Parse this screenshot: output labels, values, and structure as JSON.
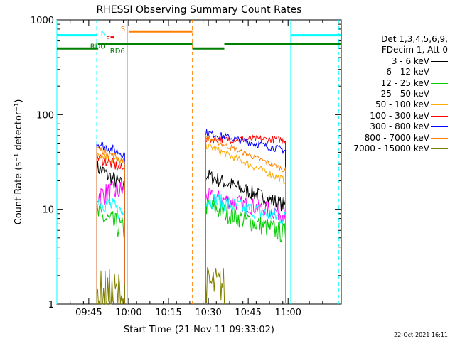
{
  "chart_data": {
    "type": "line",
    "title": "RHESSI Observing Summary Count Rates",
    "xlabel": "Start Time (21-Nov-11 09:33:02)",
    "ylabel": "Count Rate (s⁻¹ detector⁻¹)",
    "yscale": "log",
    "ylim": [
      1,
      1000
    ],
    "xlim_minutes": [
      0,
      107
    ],
    "x_ticks": [
      {
        "label": "09:45",
        "t": 12
      },
      {
        "label": "10:00",
        "t": 27
      },
      {
        "label": "10:15",
        "t": 42
      },
      {
        "label": "10:30",
        "t": 57
      },
      {
        "label": "10:45",
        "t": 72
      },
      {
        "label": "11:00",
        "t": 87
      }
    ],
    "y_ticks": [
      {
        "label": "1",
        "v": 1
      },
      {
        "label": "10",
        "v": 10
      },
      {
        "label": "100",
        "v": 100
      },
      {
        "label": "1000",
        "v": 1000
      }
    ],
    "legend_header": [
      "Det 1,3,4,5,6,9,",
      "FDecim 1, Att 0"
    ],
    "series": [
      {
        "name": "3 - 6 keV",
        "color": "#000000",
        "segments": [
          {
            "t0": 15,
            "t1": 25.5,
            "start": 28,
            "end": 17,
            "noise": 0.09
          },
          {
            "t0": 56,
            "t1": 86,
            "start": 23,
            "end": 11,
            "noise": 0.08
          }
        ]
      },
      {
        "name": "6 - 12 keV",
        "color": "#ff00ff",
        "segments": [
          {
            "t0": 15,
            "t1": 25.5,
            "start": 14,
            "end": 16,
            "noise": 0.12
          },
          {
            "t0": 56,
            "t1": 86,
            "start": 14,
            "end": 9,
            "noise": 0.09
          }
        ]
      },
      {
        "name": "12 - 25 keV",
        "color": "#00cc00",
        "segments": [
          {
            "t0": 15,
            "t1": 25.5,
            "start": 9,
            "end": 6,
            "noise": 0.13
          },
          {
            "t0": 56,
            "t1": 86,
            "start": 11,
            "end": 5.5,
            "noise": 0.11
          }
        ]
      },
      {
        "name": "25 - 50 keV",
        "color": "#00ffff",
        "segments": [
          {
            "t0": 15,
            "t1": 25.5,
            "start": 13,
            "end": 9,
            "noise": 0.1
          },
          {
            "t0": 56,
            "t1": 86,
            "start": 13,
            "end": 8,
            "noise": 0.09
          }
        ]
      },
      {
        "name": "50 - 100 keV",
        "color": "#ffaa00",
        "segments": [
          {
            "t0": 15,
            "t1": 25.5,
            "start": 40,
            "end": 30,
            "noise": 0.05
          },
          {
            "t0": 56,
            "t1": 86,
            "start": 48,
            "end": 20,
            "noise": 0.04
          }
        ]
      },
      {
        "name": "100 - 300 keV",
        "color": "#ff0000",
        "segments": [
          {
            "t0": 15,
            "t1": 25.5,
            "start": 36,
            "end": 26,
            "noise": 0.06
          },
          {
            "t0": 56,
            "t1": 86,
            "start": 55,
            "end": 55,
            "noise": 0.04
          }
        ]
      },
      {
        "name": "300 - 800 keV",
        "color": "#0000ff",
        "segments": [
          {
            "t0": 15,
            "t1": 25.5,
            "start": 50,
            "end": 38,
            "noise": 0.05
          },
          {
            "t0": 56,
            "t1": 86,
            "start": 65,
            "end": 42,
            "noise": 0.04
          }
        ]
      },
      {
        "name": "800 - 7000 keV",
        "color": "#ff8000",
        "segments": [
          {
            "t0": 15,
            "t1": 25.5,
            "start": 45,
            "end": 32,
            "noise": 0.04
          },
          {
            "t0": 56,
            "t1": 86,
            "start": 58,
            "end": 26,
            "noise": 0.03
          }
        ]
      },
      {
        "name": "7000 - 15000 keV",
        "color": "#808000",
        "segments": [
          {
            "t0": 15,
            "t1": 25.5,
            "start": 1.2,
            "end": 1.2,
            "noise": 0.3
          },
          {
            "t0": 56,
            "t1": 63,
            "start": 1.6,
            "end": 1.6,
            "noise": 0.2
          }
        ]
      }
    ],
    "flags": [
      {
        "label": "N",
        "color": "#00ffff",
        "label_t": 16.5,
        "label_y": 1.0
      },
      {
        "label": "F",
        "color": "#ff0000",
        "label_t": 18.5,
        "label_y": 2.3
      },
      {
        "label": "S",
        "color": "#ff8000",
        "label_t": 24,
        "label_y": 0.0
      },
      {
        "label": "RD0",
        "color": "#008000",
        "label_t": 12.5,
        "label_y": 4.1
      },
      {
        "label": "RD6",
        "color": "#008000",
        "label_t": 20,
        "label_y": 5.2
      }
    ],
    "flag_bars": [
      {
        "color": "#00ffff",
        "row": 1.6,
        "t0": 0,
        "t1": 15
      },
      {
        "color": "#00ffff",
        "row": 1.6,
        "t0": 88,
        "t1": 107
      },
      {
        "color": "#ff8000",
        "row": 0.7,
        "t0": 27,
        "t1": 51
      },
      {
        "color": "#ff0000",
        "row": 2.1,
        "t0": 20.2,
        "t1": 21.4
      },
      {
        "color": "#008000",
        "row": 3.6,
        "t0": 15.5,
        "t1": 51
      },
      {
        "color": "#008000",
        "row": 3.6,
        "t0": 63,
        "t1": 107
      },
      {
        "color": "#008000",
        "row": 4.7,
        "t0": 0,
        "t1": 15.5
      },
      {
        "color": "#008000",
        "row": 4.7,
        "t0": 51,
        "t1": 63
      }
    ],
    "vlines": [
      {
        "t": 0,
        "color": "#00ffff",
        "dash": false
      },
      {
        "t": 15,
        "color": "#00ffff",
        "dash": true
      },
      {
        "t": 26.5,
        "color": "#ff8000",
        "dash": false
      },
      {
        "t": 51,
        "color": "#ff8000",
        "dash": true
      },
      {
        "t": 88,
        "color": "#00ffff",
        "dash": false
      },
      {
        "t": 106,
        "color": "#00ffff",
        "dash": true
      }
    ],
    "grid": false,
    "legend_position": "right"
  },
  "footer_stamp": "22-Oct-2021 16:11"
}
